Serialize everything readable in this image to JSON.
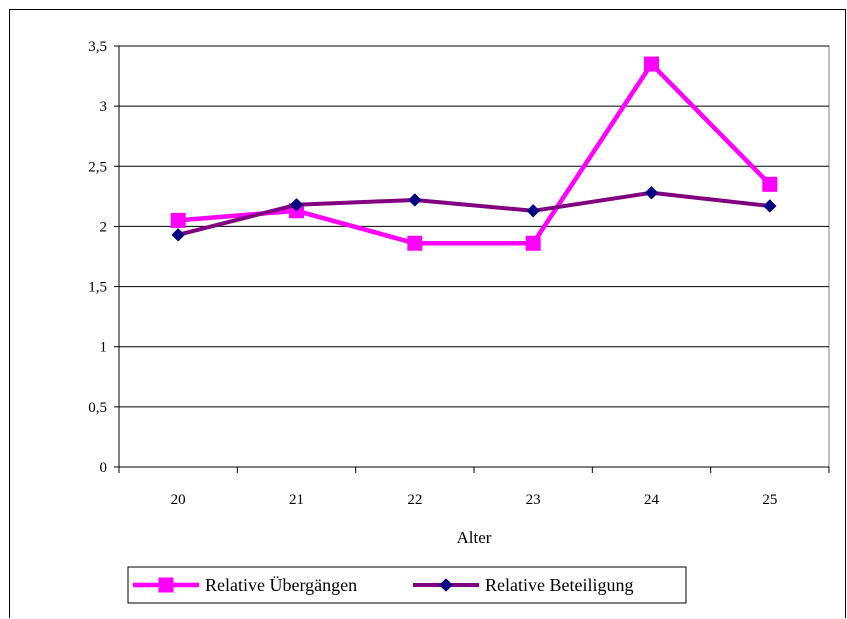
{
  "chart_data": {
    "type": "line",
    "title": "",
    "xlabel": "Alter",
    "ylabel": "",
    "categories": [
      "20",
      "21",
      "22",
      "23",
      "24",
      "25"
    ],
    "yticks": [
      "0",
      "0,5",
      "1",
      "1,5",
      "2",
      "2,5",
      "3",
      "3,5"
    ],
    "ylim": [
      0,
      3.5
    ],
    "grid": "horizontal",
    "legend_position": "bottom-left",
    "series": [
      {
        "name": "Relative Übergängen",
        "values": [
          2.05,
          2.13,
          1.86,
          1.86,
          3.35,
          2.35
        ],
        "color": "#FF00FF",
        "marker": "square"
      },
      {
        "name": "Relative Beteiligung",
        "values": [
          1.93,
          2.18,
          2.22,
          2.13,
          2.28,
          2.17
        ],
        "color": "#800080",
        "marker": "diamond",
        "marker_fill": "#000080"
      }
    ]
  }
}
